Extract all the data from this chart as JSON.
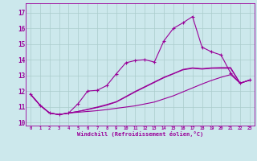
{
  "xlabel": "Windchill (Refroidissement éolien,°C)",
  "bg_color": "#cce8ec",
  "line_color": "#990099",
  "grid_color": "#aacccc",
  "xlim": [
    -0.5,
    23.5
  ],
  "ylim": [
    9.8,
    17.6
  ],
  "xticks": [
    0,
    1,
    2,
    3,
    4,
    5,
    6,
    7,
    8,
    9,
    10,
    11,
    12,
    13,
    14,
    15,
    16,
    17,
    18,
    19,
    20,
    21,
    22,
    23
  ],
  "yticks": [
    10,
    11,
    12,
    13,
    14,
    15,
    16,
    17
  ],
  "series1": [
    11.8,
    11.1,
    10.6,
    10.5,
    10.6,
    11.2,
    12.0,
    12.05,
    12.35,
    13.1,
    13.8,
    13.95,
    14.0,
    13.85,
    15.2,
    16.0,
    16.35,
    16.75,
    14.8,
    14.5,
    14.3,
    13.15,
    12.5,
    12.7
  ],
  "series2": [
    11.8,
    11.1,
    10.6,
    10.5,
    10.6,
    10.65,
    10.7,
    10.75,
    10.82,
    10.9,
    10.98,
    11.06,
    11.18,
    11.3,
    11.5,
    11.7,
    11.95,
    12.2,
    12.45,
    12.68,
    12.88,
    13.05,
    12.5,
    12.7
  ],
  "series3": [
    11.8,
    11.1,
    10.6,
    10.5,
    10.6,
    10.7,
    10.82,
    10.95,
    11.1,
    11.3,
    11.62,
    11.95,
    12.25,
    12.55,
    12.85,
    13.1,
    13.35,
    13.45,
    13.4,
    13.45,
    13.45,
    13.45,
    12.5,
    12.7
  ],
  "series4": [
    11.8,
    11.1,
    10.6,
    10.5,
    10.6,
    10.7,
    10.84,
    10.98,
    11.14,
    11.32,
    11.65,
    11.98,
    12.28,
    12.58,
    12.88,
    13.12,
    13.38,
    13.48,
    13.43,
    13.48,
    13.5,
    13.5,
    12.5,
    12.7
  ]
}
